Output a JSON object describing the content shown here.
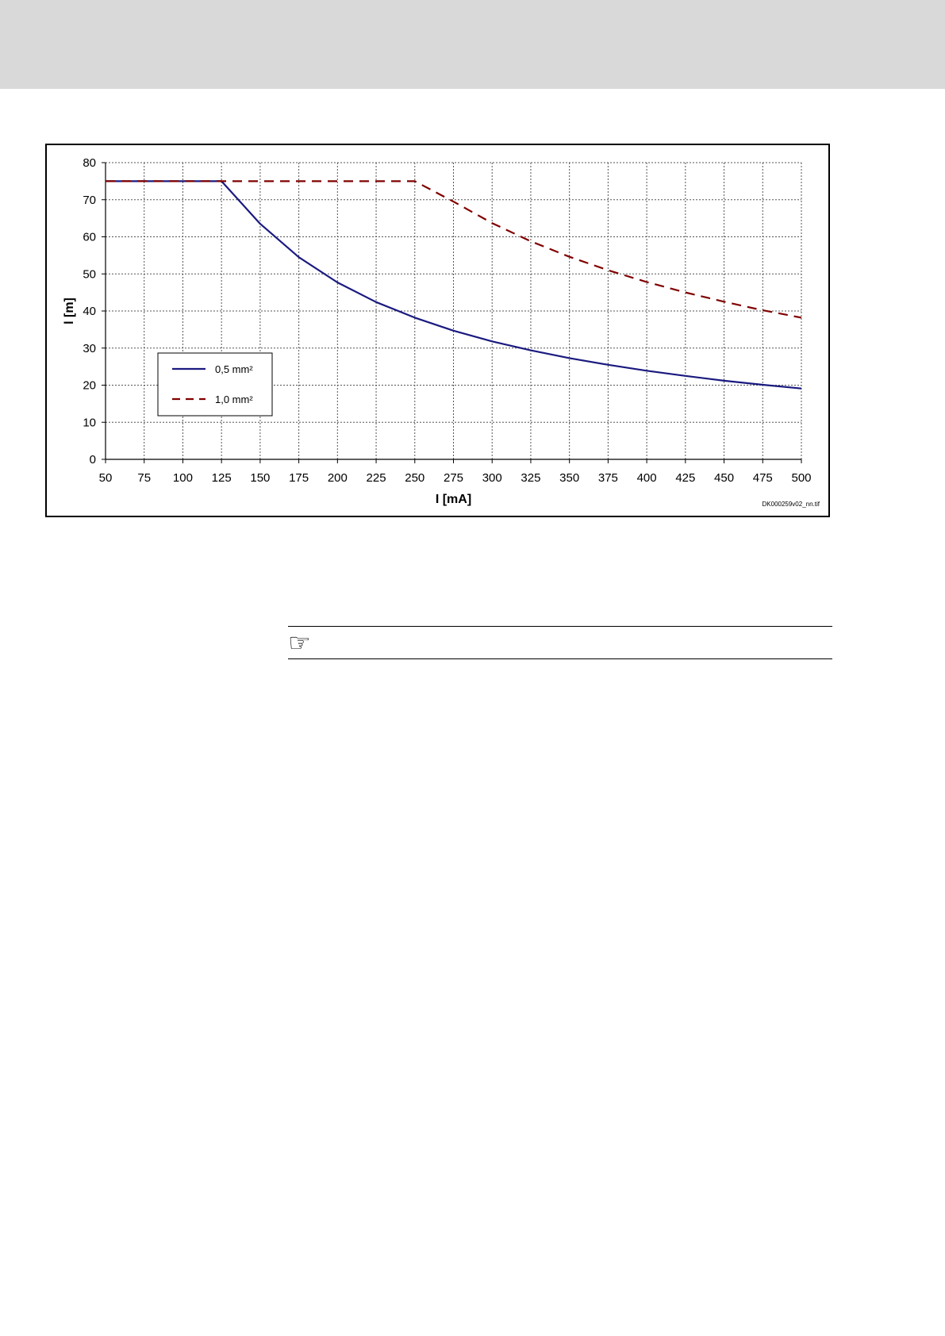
{
  "page": {
    "note_icon": "pointing-hand-icon"
  },
  "chart_data": {
    "type": "line",
    "title": "",
    "xlabel": "I [mA]",
    "ylabel": "l [m]",
    "xlim": [
      50,
      500
    ],
    "ylim": [
      0,
      80
    ],
    "xticks": [
      50,
      75,
      100,
      125,
      150,
      175,
      200,
      225,
      250,
      275,
      300,
      325,
      350,
      375,
      400,
      425,
      450,
      475,
      500
    ],
    "yticks": [
      0,
      10,
      20,
      30,
      40,
      50,
      60,
      70,
      80
    ],
    "grid": true,
    "legend_position": "lower-left",
    "file_label": "DK000259v02_nn.tif",
    "series": [
      {
        "name": "0,5 mm²",
        "color": "#1a1a80",
        "style": "solid",
        "x": [
          50,
          75,
          100,
          125,
          150,
          175,
          200,
          225,
          250,
          275,
          300,
          325,
          350,
          375,
          400,
          425,
          450,
          475,
          500
        ],
        "y": [
          75,
          75,
          75,
          75,
          63.5,
          54.5,
          47.7,
          42.4,
          38.2,
          34.7,
          31.8,
          29.4,
          27.3,
          25.5,
          23.9,
          22.5,
          21.2,
          20.1,
          19.1
        ]
      },
      {
        "name": "1,0 mm²",
        "color": "#800000",
        "style": "dashed",
        "x": [
          50,
          75,
          100,
          125,
          150,
          175,
          200,
          225,
          250,
          275,
          300,
          325,
          350,
          375,
          400,
          425,
          450,
          475,
          500
        ],
        "y": [
          75,
          75,
          75,
          75,
          75,
          75,
          75,
          75,
          75,
          69.5,
          63.7,
          58.8,
          54.6,
          51.0,
          47.8,
          45.0,
          42.5,
          40.2,
          38.2
        ]
      }
    ]
  }
}
